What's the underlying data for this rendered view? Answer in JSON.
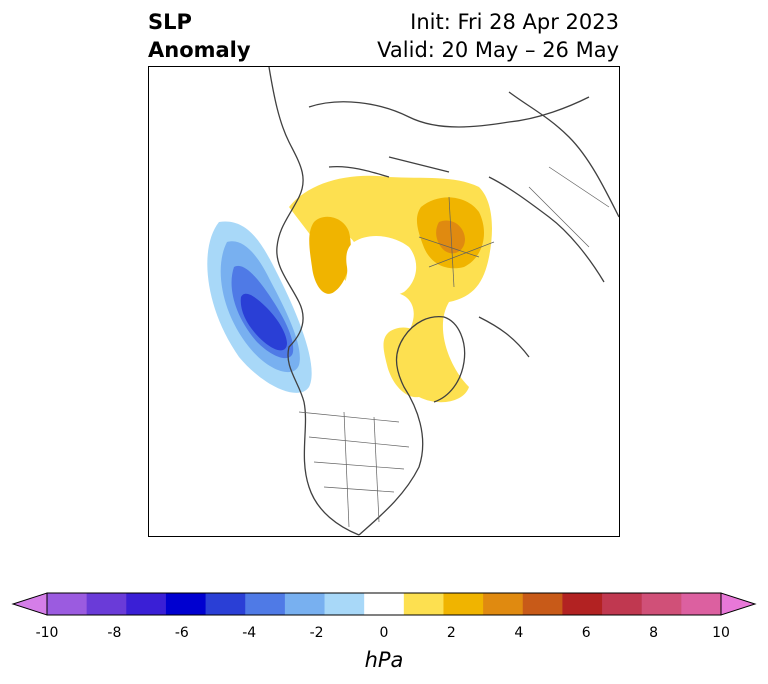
{
  "title": {
    "left_line1": "SLP",
    "left_line2": "Anomaly",
    "right_line1": "Init: Fri 28 Apr 2023",
    "right_line2": "Valid: 20 May – 26 May"
  },
  "colorbar": {
    "unit": "hPa",
    "ticks": [
      "-10",
      "-8",
      "-6",
      "-4",
      "-2",
      "0",
      "2",
      "4",
      "6",
      "8",
      "10"
    ],
    "extend": "both",
    "colors": [
      "#d57ee8",
      "#9b5be0",
      "#6a3bd8",
      "#3a1fd6",
      "#0000d0",
      "#2a3fd6",
      "#4f7ae6",
      "#78b0f0",
      "#a8d8f8",
      "#ffffff",
      "#fde050",
      "#f0b400",
      "#e08a10",
      "#c85a18",
      "#b22222",
      "#c03850",
      "#d05078",
      "#dc60a0",
      "#e878d8"
    ]
  },
  "map": {
    "projection": "north-polar-stereographic",
    "anomalies": [
      {
        "name": "north-pacific-low",
        "sign": "negative",
        "peak_hpa": -6
      },
      {
        "name": "greenland-high",
        "sign": "positive",
        "peak_hpa": 2
      },
      {
        "name": "arctic-siberia-high",
        "sign": "positive",
        "peak_hpa": 4
      }
    ]
  }
}
